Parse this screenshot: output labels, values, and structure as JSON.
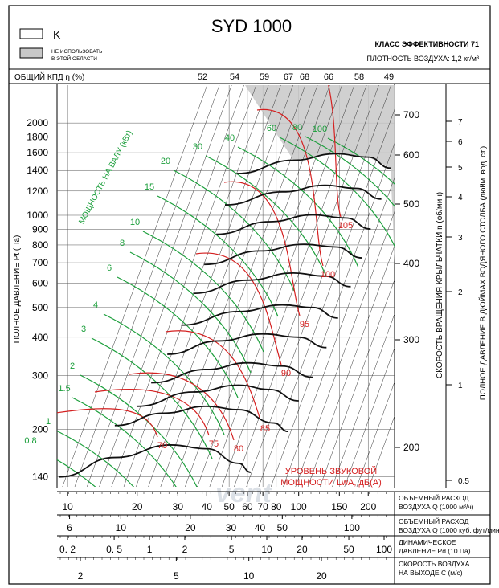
{
  "header": {
    "title": "SYD 1000",
    "legend_k": "K",
    "legend_grey_line1": "НЕ ИСПОЛЬЗОВАТЬ",
    "legend_grey_line2": "В ЭТОЙ ОБЛАСТИ",
    "efficiency_class": "КЛАСС ЭФФЕКТИВНОСТИ 71",
    "air_density": "ПЛОТНОСТЬ ВОЗДУХА: 1,2 кг/м³",
    "eff_label": "ОБЩИЙ КПД η (%)",
    "watermark": "vent"
  },
  "colors": {
    "axis": "#000000",
    "grid": "#555555",
    "power": "#1a9e3a",
    "sound": "#d42020",
    "curve": "#111111",
    "grey_zone": "#c8c8c8"
  },
  "chart_data": {
    "type": "line",
    "title": "SYD 1000",
    "xlabel": "ОБЪЕМНЫЙ РАСХОД ВОЗДУХА Q (1000 м³/ч)",
    "ylabel": "ПОЛНОЕ ДАВЛЕНИЕ Pt (Па)",
    "ylabel_right_rpm": "СКОРОСТЬ ВРАЩЕНИЯ КРЫЛЬЧАТКИ n (об/мин)",
    "ylabel_right_inwg": "ПОЛНОЕ ДАВЛЕНИЕ В ДЮЙМАХ ВОДЯНОГО СТОЛБА (дюйм. вод. ст.)",
    "x_scale": "log",
    "y_scale": "log",
    "xlim": [
      9,
      260
    ],
    "ylim": [
      130,
      2300
    ],
    "efficiency_ticks": [
      "52",
      "54",
      "59",
      "67",
      "68",
      "66",
      "58",
      "49"
    ],
    "pressure_ticks": [
      "2000",
      "1800",
      "1600",
      "1400",
      "1200",
      "1000",
      "900",
      "800",
      "700",
      "600",
      "500",
      "400",
      "300",
      "200",
      "140"
    ],
    "pressure_tick_values": [
      2000,
      1800,
      1600,
      1400,
      1200,
      1000,
      900,
      800,
      700,
      600,
      500,
      400,
      300,
      200,
      140
    ],
    "rpm_ticks": [
      "700",
      "600",
      "500",
      "400",
      "300",
      "200"
    ],
    "inwg_ticks": [
      "7",
      "6",
      "5",
      "4",
      "3",
      "2",
      "1",
      "0.5"
    ],
    "power_label": "МОЩНОСТЬ НА ВАЛУ (кВт)",
    "power_values": [
      "0.8",
      "1",
      "1.5",
      "2",
      "3",
      "4",
      "6",
      "8",
      "10",
      "15",
      "20",
      "30",
      "40",
      "60",
      "80",
      "100"
    ],
    "sound_label_line1": "УРОВЕНЬ ЗВУКОВОЙ",
    "sound_label_line2": "МОЩНОСТИ LwA, дБ(А)",
    "sound_values": [
      "70",
      "75",
      "80",
      "85",
      "90",
      "95",
      "100",
      "105"
    ],
    "speed_curves": [
      {
        "rpm": 200,
        "points": [
          [
            9.2,
            140
          ],
          [
            16,
            162
          ],
          [
            28,
            178
          ],
          [
            40,
            173
          ],
          [
            55,
            155
          ],
          [
            62,
            145
          ]
        ]
      },
      {
        "rpm": 225,
        "points": [
          [
            16,
            206
          ],
          [
            26,
            226
          ],
          [
            40,
            238
          ],
          [
            55,
            232
          ],
          [
            78,
            210
          ],
          [
            90,
            197
          ]
        ]
      },
      {
        "rpm": 250,
        "points": [
          [
            20,
            238
          ],
          [
            35,
            265
          ],
          [
            55,
            279
          ],
          [
            75,
            270
          ],
          [
            100,
            248
          ]
        ]
      },
      {
        "rpm": 280,
        "points": [
          [
            23,
            284
          ],
          [
            40,
            314
          ],
          [
            60,
            330
          ],
          [
            85,
            322
          ],
          [
            115,
            296
          ]
        ]
      },
      {
        "rpm": 315,
        "points": [
          [
            27,
            352
          ],
          [
            45,
            389
          ],
          [
            70,
            410
          ],
          [
            100,
            400
          ],
          [
            132,
            370
          ]
        ]
      },
      {
        "rpm": 355,
        "points": [
          [
            31,
            438
          ],
          [
            55,
            485
          ],
          [
            85,
            510
          ],
          [
            115,
            500
          ],
          [
            148,
            462
          ]
        ]
      },
      {
        "rpm": 400,
        "points": [
          [
            35,
            556
          ],
          [
            60,
            614
          ],
          [
            95,
            648
          ],
          [
            130,
            633
          ],
          [
            168,
            585
          ]
        ]
      },
      {
        "rpm": 450,
        "points": [
          [
            39,
            691
          ],
          [
            68,
            765
          ],
          [
            105,
            804
          ],
          [
            145,
            788
          ],
          [
            188,
            726
          ]
        ]
      },
      {
        "rpm": 500,
        "points": [
          [
            44,
            867
          ],
          [
            75,
            953
          ],
          [
            115,
            1003
          ],
          [
            160,
            980
          ],
          [
            205,
            902
          ]
        ]
      },
      {
        "rpm": 560,
        "points": [
          [
            48,
            1081
          ],
          [
            85,
            1192
          ],
          [
            130,
            1253
          ],
          [
            178,
            1224
          ],
          [
            228,
            1129
          ]
        ]
      },
      {
        "rpm": 630,
        "points": [
          [
            54,
            1368
          ],
          [
            95,
            1512
          ],
          [
            145,
            1588
          ],
          [
            200,
            1548
          ],
          [
            250,
            1425
          ]
        ]
      }
    ]
  },
  "bottom_axes": [
    {
      "label1": "ОБЪЕМНЫЙ РАСХОД",
      "label2": "ВОЗДУХА Q (1000 м³/ч)",
      "ticks": [
        "10",
        "20",
        "30",
        "40",
        "50",
        "60",
        "70",
        "80",
        "100",
        "150",
        "200"
      ],
      "values": [
        10,
        20,
        30,
        40,
        50,
        60,
        70,
        80,
        100,
        150,
        200
      ]
    },
    {
      "label1": "ОБЪЕМНЫЙ РАСХОД",
      "label2": "ВОЗДУХА Q (1000 куб. фут/мин)",
      "ticks": [
        "6",
        "10",
        "20",
        "30",
        "40",
        "50",
        "100"
      ],
      "values": [
        6,
        10,
        20,
        30,
        40,
        50,
        100
      ]
    },
    {
      "label1": "ДИНАМИЧЕСКОЕ",
      "label2": "ДАВЛЕНИЕ Pd (10 Па)",
      "ticks": [
        "0. 2",
        "0. 5",
        "1",
        "2",
        "5",
        "10",
        "20",
        "50",
        "100"
      ],
      "values": [
        0.2,
        0.5,
        1,
        2,
        5,
        10,
        20,
        50,
        100
      ]
    },
    {
      "label1": "СКОРОСТЬ ВОЗДУХА",
      "label2": "НА ВЫХОДЕ С (м/с)",
      "ticks": [
        "2",
        "5",
        "10",
        "20"
      ],
      "values": [
        2,
        5,
        10,
        20
      ]
    }
  ]
}
